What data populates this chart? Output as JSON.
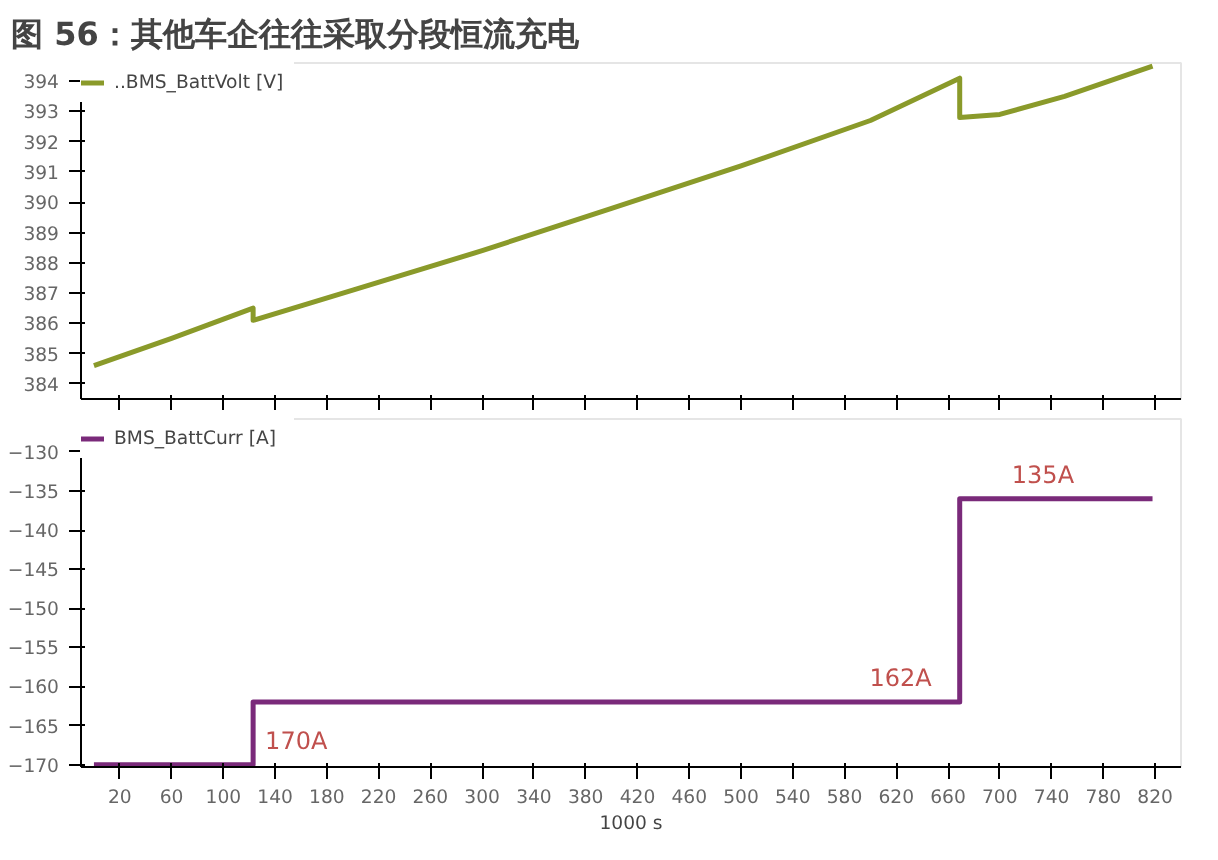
{
  "chart_data": [
    {
      "type": "line",
      "title": "图 56：其他车企往往采取分段恒流充电",
      "series": [
        {
          "name": "..BMS_BattVolt [V]",
          "color": "#8a9a2a",
          "x": [
            0,
            60,
            123,
            123,
            200,
            300,
            400,
            500,
            600,
            669,
            669,
            700,
            750,
            818
          ],
          "values": [
            384.6,
            385.5,
            386.5,
            386.1,
            387.1,
            388.4,
            389.8,
            391.2,
            392.7,
            394.1,
            392.8,
            392.9,
            393.5,
            394.5
          ]
        }
      ],
      "xlim": [
        -10,
        840
      ],
      "ylim": [
        383.5,
        394.6
      ],
      "xticks": [
        20,
        60,
        100,
        140,
        180,
        220,
        260,
        300,
        340,
        380,
        420,
        460,
        500,
        540,
        580,
        620,
        660,
        700,
        740,
        780,
        820
      ],
      "yticks": [
        384,
        385,
        386,
        387,
        388,
        389,
        390,
        391,
        392,
        393,
        394
      ],
      "tick_labels": "y",
      "grid": false,
      "legend": "top left",
      "marker": "none",
      "line_style": "solid"
    },
    {
      "type": "line",
      "xlabel": "1000 s",
      "series": [
        {
          "name": "BMS_BattCurr [A]",
          "color": "#7a2a7a",
          "x": [
            0,
            123,
            123,
            669,
            669,
            818
          ],
          "values": [
            -170,
            -170,
            -162,
            -162,
            -136,
            -136
          ]
        }
      ],
      "annotations": [
        {
          "text": "170A",
          "x": 123,
          "y": -170
        },
        {
          "text": "162A",
          "x": 590,
          "y": -162
        },
        {
          "text": "135A",
          "x": 700,
          "y": -136
        }
      ],
      "xlim": [
        -10,
        840
      ],
      "ylim": [
        -170.3,
        -125.8
      ],
      "xticks": [
        20,
        60,
        100,
        140,
        180,
        220,
        260,
        300,
        340,
        380,
        420,
        460,
        500,
        540,
        580,
        620,
        660,
        700,
        740,
        780,
        820
      ],
      "yticks": [
        -170,
        -165,
        -160,
        -155,
        -150,
        -145,
        -140,
        -135,
        -130
      ],
      "grid": false,
      "legend": "top left",
      "marker": "none",
      "line_style": "solid"
    }
  ]
}
